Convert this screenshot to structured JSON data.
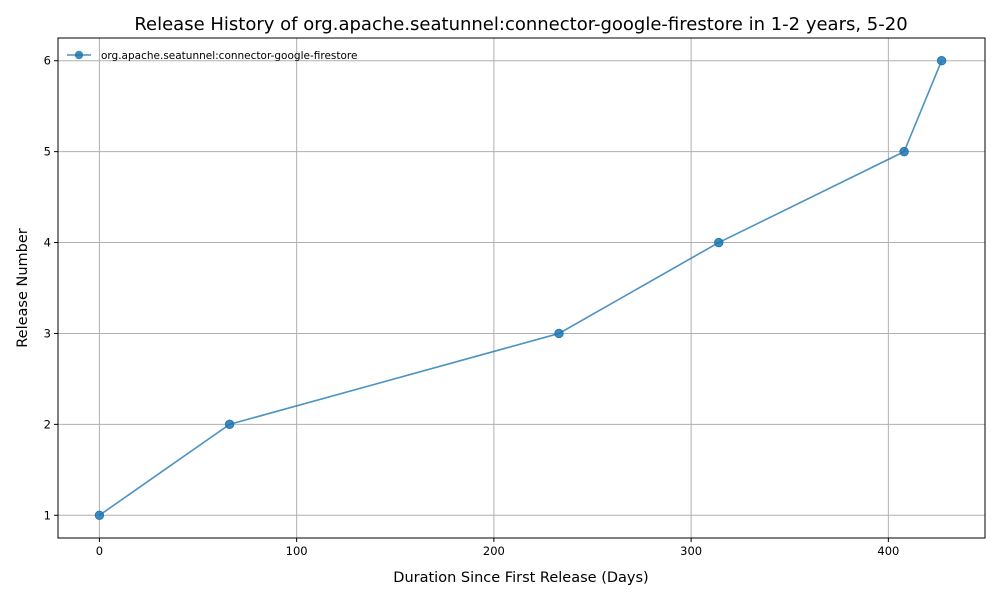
{
  "chart_data": {
    "type": "line",
    "title": "Release History of org.apache.seatunnel:connector-google-firestore in 1-2 years, 5-20",
    "xlabel": "Duration Since First Release (Days)",
    "ylabel": "Release Number",
    "xlim": [
      -21,
      449
    ],
    "ylim": [
      0.75,
      6.25
    ],
    "xticks": [
      0,
      100,
      200,
      300,
      400
    ],
    "yticks": [
      1,
      2,
      3,
      4,
      5,
      6
    ],
    "grid": true,
    "legend_position": "top-left",
    "series": [
      {
        "name": "org.apache.seatunnel:connector-google-firestore",
        "color": "#1f77b4",
        "marker": "circle",
        "x": [
          0,
          66,
          233,
          314,
          408,
          427
        ],
        "y": [
          1,
          2,
          3,
          4,
          5,
          6
        ]
      }
    ]
  }
}
